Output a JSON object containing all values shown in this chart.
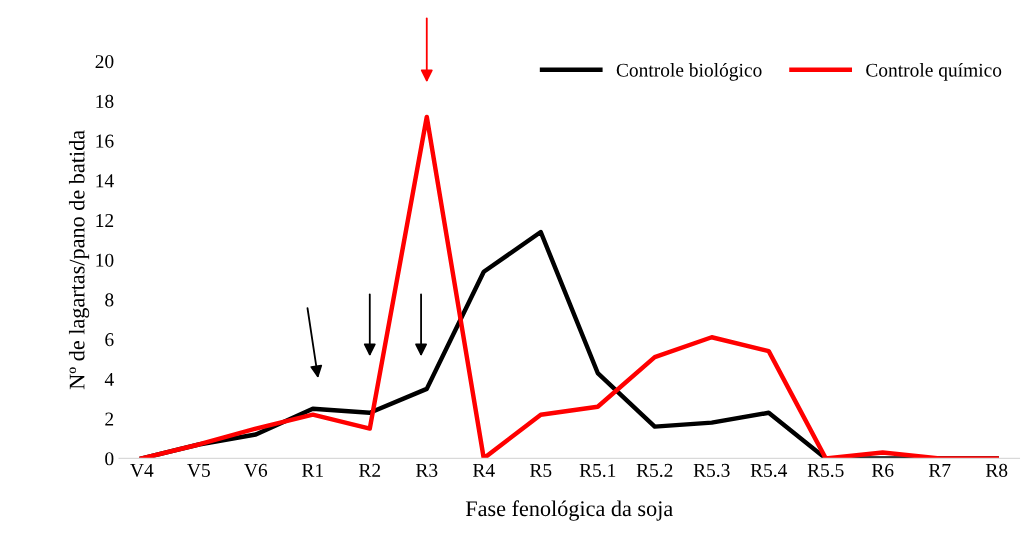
{
  "chart_data": {
    "type": "line",
    "xlabel": "Fase fenológica da soja",
    "ylabel": "Nº de lagartas/pano de batida",
    "categories": [
      "V4",
      "V5",
      "V6",
      "R1",
      "R2",
      "R3",
      "R4",
      "R5",
      "R5.1",
      "R5.2",
      "R5.3",
      "R5.4",
      "R5.5",
      "R6",
      "R7",
      "R8"
    ],
    "series": [
      {
        "name": "Controle biológico",
        "color": "#000000",
        "values": [
          0,
          0.7,
          1.2,
          2.5,
          2.3,
          3.5,
          9.4,
          11.4,
          4.3,
          1.6,
          1.8,
          2.3,
          0,
          0,
          0,
          0
        ]
      },
      {
        "name": "Controle químico",
        "color": "#ff0000",
        "values": [
          0,
          0.7,
          1.5,
          2.2,
          1.5,
          17.2,
          0,
          2.2,
          2.6,
          5.1,
          6.1,
          5.4,
          0,
          0.3,
          0,
          0
        ]
      }
    ],
    "ylim": [
      0,
      20
    ],
    "yticks": [
      0,
      2,
      4,
      6,
      8,
      10,
      12,
      14,
      16,
      18,
      20
    ],
    "grid": false,
    "legend": "top right",
    "marker": "none",
    "line_style": "solid"
  }
}
